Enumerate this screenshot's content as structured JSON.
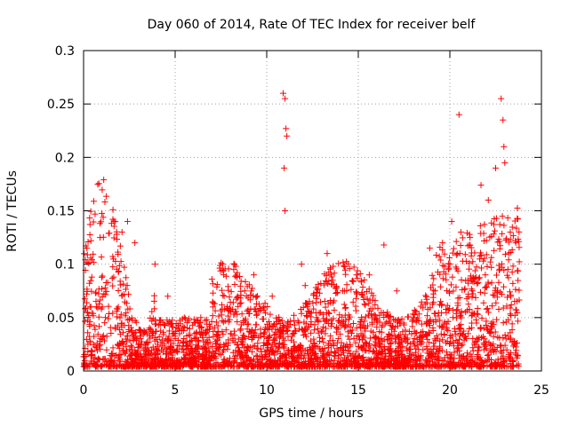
{
  "chart_data": {
    "type": "scatter",
    "title": "Day 060 of 2014, Rate Of TEC Index for receiver belf",
    "xlabel": "GPS time / hours",
    "ylabel": "ROTI / TECUs",
    "xlim": [
      0,
      25
    ],
    "ylim": [
      0,
      0.3
    ],
    "xticks": [
      0,
      5,
      10,
      15,
      20,
      25
    ],
    "yticks": [
      0,
      0.05,
      0.1,
      0.15,
      0.2,
      0.25,
      0.3
    ],
    "grid": true,
    "marker": "+",
    "color": "#ff0000",
    "series": [
      {
        "name": "ROTI",
        "x": [
          1.1,
          10.9,
          11.0,
          11.05,
          11.1,
          10.95,
          11.0,
          20.5,
          22.8,
          22.9,
          22.95,
          23.0,
          22.5,
          21.7,
          1.6,
          2.4,
          2.1,
          0.9,
          2.8,
          3.9,
          5.5,
          7.6,
          8.2,
          9.3,
          11.9,
          13.3,
          14.9,
          16.4,
          18.9,
          19.6,
          20.1,
          20.6,
          21.1,
          22.1,
          23.3,
          23.6,
          12.1,
          13.6,
          15.6,
          17.1,
          10.3,
          8.8,
          6.4,
          4.6,
          0.4,
          0.2
        ],
        "y": [
          0.179,
          0.26,
          0.255,
          0.227,
          0.22,
          0.19,
          0.15,
          0.24,
          0.255,
          0.235,
          0.21,
          0.195,
          0.19,
          0.174,
          0.142,
          0.14,
          0.13,
          0.125,
          0.12,
          0.1,
          0.05,
          0.1,
          0.095,
          0.09,
          0.1,
          0.11,
          0.09,
          0.118,
          0.115,
          0.12,
          0.14,
          0.13,
          0.125,
          0.16,
          0.13,
          0.12,
          0.08,
          0.085,
          0.09,
          0.075,
          0.07,
          0.075,
          0.05,
          0.07,
          0.06,
          0.055
        ]
      }
    ]
  }
}
